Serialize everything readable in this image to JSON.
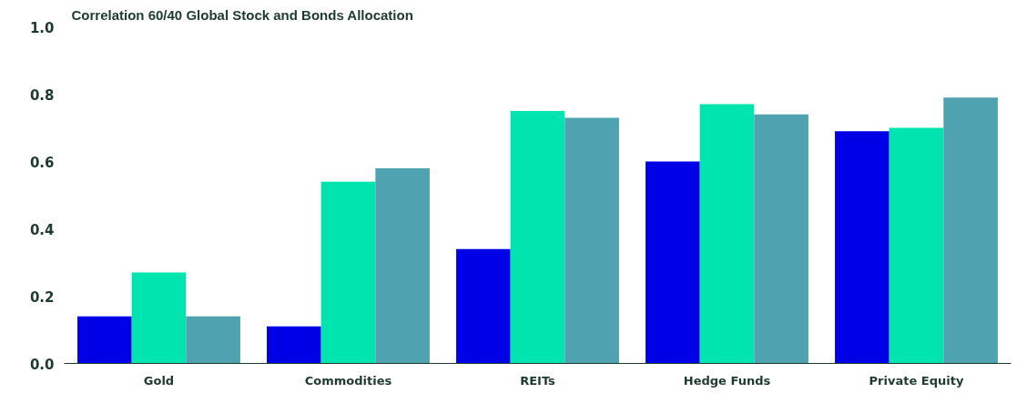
{
  "chart_data": {
    "type": "bar",
    "title": "Correlation 60/40 Global Stock and Bonds Allocation",
    "categories": [
      "Gold",
      "Commodities",
      "REITs",
      "Hedge Funds",
      "Private Equity"
    ],
    "series": [
      {
        "color": "#0000e6",
        "values": [
          0.14,
          0.11,
          0.34,
          0.6,
          0.69
        ]
      },
      {
        "color": "#00e5b0",
        "values": [
          0.27,
          0.54,
          0.75,
          0.77,
          0.7
        ]
      },
      {
        "color": "#4fa3b0",
        "values": [
          0.14,
          0.58,
          0.73,
          0.74,
          0.79
        ]
      }
    ],
    "ylim": [
      0,
      1
    ],
    "yticks": [
      {
        "value": 0,
        "label": "0.0"
      },
      {
        "value": 0.2,
        "label": "0.2"
      },
      {
        "value": 0.4,
        "label": "0.4"
      },
      {
        "value": 0.6,
        "label": "0.6"
      },
      {
        "value": 0.8,
        "label": "0.8"
      },
      {
        "value": 1,
        "label": "1.0"
      }
    ],
    "grid": false
  }
}
